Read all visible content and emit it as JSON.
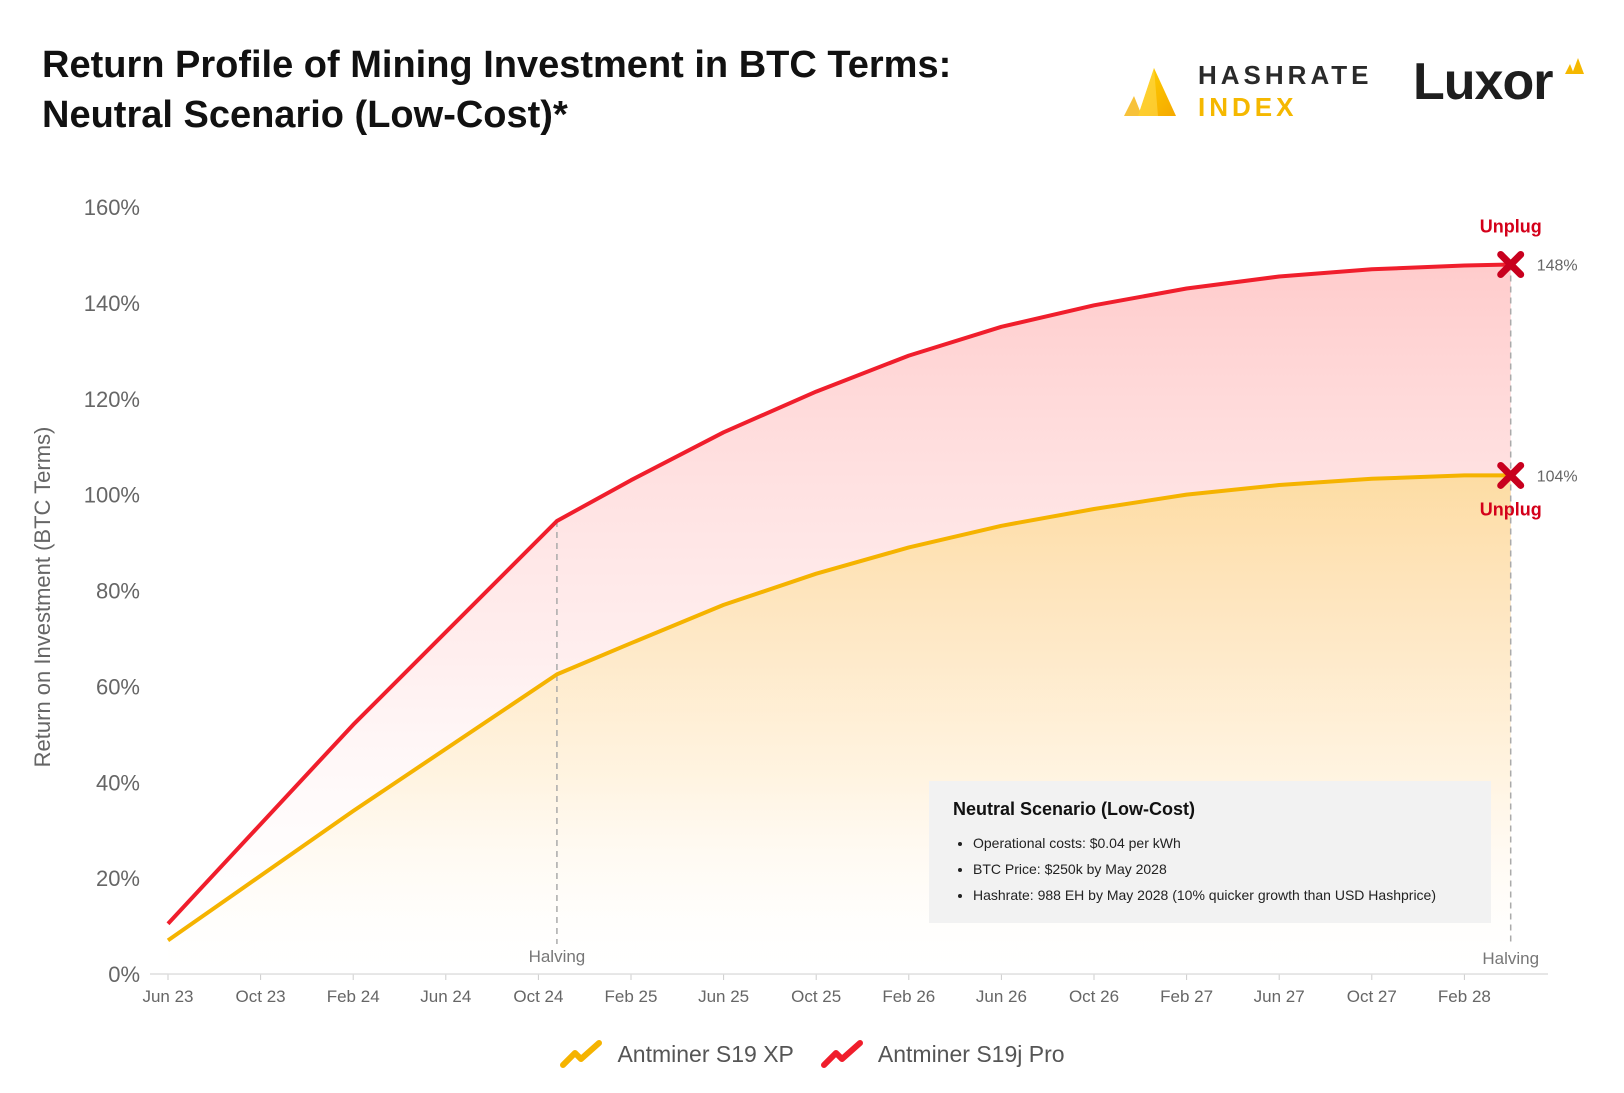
{
  "header": {
    "title_line1": "Return Profile of Mining Investment in BTC Terms:",
    "title_line2": "Neutral Scenario (Low-Cost)*"
  },
  "brands": {
    "hashrate_index": {
      "word1": "HASHRATE",
      "word2": "INDEX",
      "color": "#f5b800"
    },
    "luxor": {
      "word": "Luxor",
      "color": "#f5b800"
    }
  },
  "info_box": {
    "heading": "Neutral Scenario (Low-Cost)",
    "bullets": [
      "Operational costs: $0.04 per kWh",
      "BTC Price: $250k by May 2028",
      "Hashrate: 988 EH by May 2028 (10% quicker growth than USD Hashprice)"
    ]
  },
  "chart_data": {
    "type": "area",
    "ylabel": "Return on Investment (BTC Terms)",
    "xlabel": "",
    "ylim": [
      0,
      160
    ],
    "yticks": [
      "0%",
      "20%",
      "40%",
      "60%",
      "80%",
      "100%",
      "120%",
      "140%",
      "160%"
    ],
    "categories": [
      "Jun 23",
      "Oct 23",
      "Feb 24",
      "Jun 24",
      "Oct 24",
      "Feb 25",
      "Jun 25",
      "Oct 25",
      "Feb 26",
      "Jun 26",
      "Oct 26",
      "Feb 27",
      "Jun 27",
      "Oct 27",
      "Feb 28"
    ],
    "grid": false,
    "legend_position": "bottom-center",
    "series": [
      {
        "name": "Antminer S19 XP",
        "color": "#f5b300",
        "x": [
          0,
          2,
          4.2,
          5,
          6,
          7,
          8,
          9,
          10,
          11,
          12,
          13,
          14,
          14.5
        ],
        "values": [
          7,
          34,
          62.5,
          69,
          77,
          83.5,
          89,
          93.5,
          97,
          100,
          102,
          103.3,
          104,
          104
        ]
      },
      {
        "name": "Antminer S19j Pro",
        "color": "#f01e2c",
        "x": [
          0,
          2,
          4.2,
          5,
          6,
          7,
          8,
          9,
          10,
          11,
          12,
          13,
          14,
          14.5
        ],
        "values": [
          10.5,
          52,
          94.5,
          103,
          113,
          121.5,
          129,
          135,
          139.5,
          143,
          145.5,
          147,
          147.8,
          148
        ]
      }
    ],
    "annotations": [
      {
        "text": "Halving",
        "x": 4.2
      },
      {
        "text": "Halving",
        "x": 14.5
      },
      {
        "text": "Unplug",
        "series": "Antminer S19j Pro",
        "x": 14.5,
        "value": 148,
        "value_label": "148%"
      },
      {
        "text": "Unplug",
        "series": "Antminer S19 XP",
        "x": 14.5,
        "value": 104,
        "value_label": "104%"
      }
    ]
  }
}
